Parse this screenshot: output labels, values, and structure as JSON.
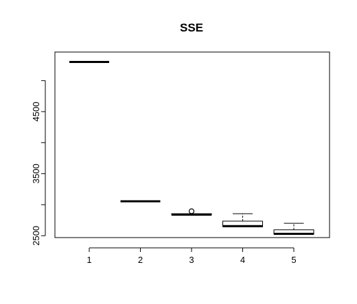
{
  "chart_data": {
    "type": "boxplot",
    "title": "SSE",
    "xlabel": "",
    "ylabel": "",
    "categories": [
      "1",
      "2",
      "3",
      "4",
      "5"
    ],
    "yticks": [
      2500,
      3500,
      4500
    ],
    "ylim": [
      2470,
      5460
    ],
    "grid": false,
    "boxes": [
      {
        "category": "1",
        "min": 5300,
        "q1": 5300,
        "median": 5300,
        "q3": 5300,
        "max": 5300,
        "outliers": []
      },
      {
        "category": "2",
        "min": 3055,
        "q1": 3055,
        "median": 3055,
        "q3": 3055,
        "max": 3055,
        "outliers": []
      },
      {
        "category": "3",
        "min": 2835,
        "q1": 2835,
        "median": 2840,
        "q3": 2855,
        "max": 2855,
        "outliers": [
          2895
        ]
      },
      {
        "category": "4",
        "min": 2645,
        "q1": 2645,
        "median": 2655,
        "q3": 2735,
        "max": 2855,
        "outliers": []
      },
      {
        "category": "5",
        "min": 2525,
        "q1": 2525,
        "median": 2530,
        "q3": 2595,
        "max": 2700,
        "outliers": []
      }
    ]
  }
}
